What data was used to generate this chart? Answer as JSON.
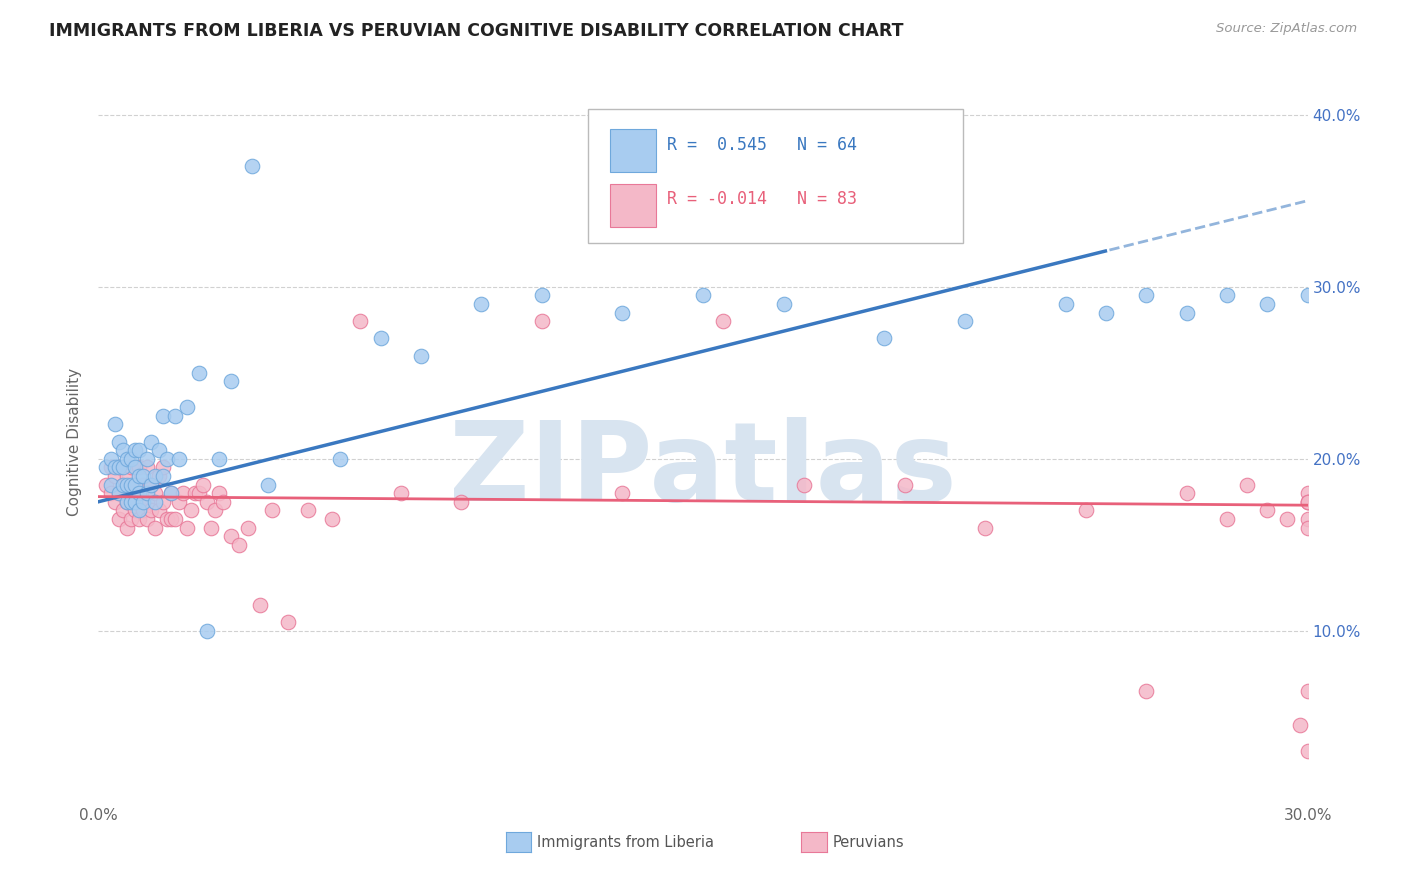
{
  "title": "IMMIGRANTS FROM LIBERIA VS PERUVIAN COGNITIVE DISABILITY CORRELATION CHART",
  "source": "Source: ZipAtlas.com",
  "ylabel": "Cognitive Disability",
  "x_min": 0.0,
  "x_max": 0.3,
  "y_min": 0.0,
  "y_max": 0.42,
  "liberia_R": 0.545,
  "liberia_N": 64,
  "peru_R": -0.014,
  "peru_N": 83,
  "liberia_color": "#A8CCF0",
  "liberia_edge_color": "#6FA8DC",
  "peru_color": "#F4B8C8",
  "peru_edge_color": "#E87898",
  "trendline_liberia_color": "#3A78C0",
  "trendline_peru_color": "#E8607A",
  "watermark_color": "#D8E4F0",
  "background_color": "#FFFFFF",
  "grid_color": "#CCCCCC",
  "liberia_x": [
    0.002,
    0.003,
    0.003,
    0.004,
    0.004,
    0.005,
    0.005,
    0.005,
    0.006,
    0.006,
    0.006,
    0.007,
    0.007,
    0.007,
    0.008,
    0.008,
    0.008,
    0.009,
    0.009,
    0.009,
    0.009,
    0.01,
    0.01,
    0.01,
    0.01,
    0.011,
    0.011,
    0.012,
    0.012,
    0.013,
    0.013,
    0.014,
    0.014,
    0.015,
    0.016,
    0.016,
    0.017,
    0.018,
    0.019,
    0.02,
    0.022,
    0.025,
    0.027,
    0.03,
    0.033,
    0.038,
    0.042,
    0.06,
    0.07,
    0.08,
    0.095,
    0.11,
    0.13,
    0.15,
    0.17,
    0.195,
    0.215,
    0.24,
    0.25,
    0.26,
    0.27,
    0.28,
    0.29,
    0.3
  ],
  "liberia_y": [
    0.195,
    0.185,
    0.2,
    0.22,
    0.195,
    0.18,
    0.195,
    0.21,
    0.185,
    0.195,
    0.205,
    0.175,
    0.185,
    0.2,
    0.175,
    0.185,
    0.2,
    0.175,
    0.185,
    0.195,
    0.205,
    0.17,
    0.18,
    0.19,
    0.205,
    0.175,
    0.19,
    0.18,
    0.2,
    0.185,
    0.21,
    0.175,
    0.19,
    0.205,
    0.19,
    0.225,
    0.2,
    0.18,
    0.225,
    0.2,
    0.23,
    0.25,
    0.1,
    0.2,
    0.245,
    0.37,
    0.185,
    0.2,
    0.27,
    0.26,
    0.29,
    0.295,
    0.285,
    0.295,
    0.29,
    0.27,
    0.28,
    0.29,
    0.285,
    0.295,
    0.285,
    0.295,
    0.29,
    0.295
  ],
  "peru_x": [
    0.002,
    0.003,
    0.003,
    0.004,
    0.004,
    0.005,
    0.005,
    0.005,
    0.006,
    0.006,
    0.007,
    0.007,
    0.007,
    0.008,
    0.008,
    0.008,
    0.009,
    0.009,
    0.01,
    0.01,
    0.01,
    0.011,
    0.011,
    0.012,
    0.012,
    0.012,
    0.013,
    0.013,
    0.014,
    0.014,
    0.015,
    0.015,
    0.016,
    0.016,
    0.017,
    0.018,
    0.018,
    0.019,
    0.02,
    0.021,
    0.022,
    0.023,
    0.024,
    0.025,
    0.026,
    0.027,
    0.028,
    0.029,
    0.03,
    0.031,
    0.033,
    0.035,
    0.037,
    0.04,
    0.043,
    0.047,
    0.052,
    0.058,
    0.065,
    0.075,
    0.09,
    0.11,
    0.13,
    0.155,
    0.175,
    0.2,
    0.22,
    0.245,
    0.26,
    0.27,
    0.28,
    0.285,
    0.29,
    0.295,
    0.298,
    0.3,
    0.3,
    0.3,
    0.3,
    0.3,
    0.3,
    0.3,
    0.3
  ],
  "peru_y": [
    0.185,
    0.18,
    0.195,
    0.175,
    0.19,
    0.165,
    0.18,
    0.195,
    0.17,
    0.185,
    0.16,
    0.175,
    0.19,
    0.165,
    0.18,
    0.195,
    0.17,
    0.185,
    0.165,
    0.18,
    0.195,
    0.17,
    0.185,
    0.165,
    0.175,
    0.195,
    0.17,
    0.185,
    0.16,
    0.18,
    0.17,
    0.19,
    0.175,
    0.195,
    0.165,
    0.165,
    0.18,
    0.165,
    0.175,
    0.18,
    0.16,
    0.17,
    0.18,
    0.18,
    0.185,
    0.175,
    0.16,
    0.17,
    0.18,
    0.175,
    0.155,
    0.15,
    0.16,
    0.115,
    0.17,
    0.105,
    0.17,
    0.165,
    0.28,
    0.18,
    0.175,
    0.28,
    0.18,
    0.28,
    0.185,
    0.185,
    0.16,
    0.17,
    0.065,
    0.18,
    0.165,
    0.185,
    0.17,
    0.165,
    0.045,
    0.03,
    0.175,
    0.18,
    0.175,
    0.175,
    0.165,
    0.16,
    0.065
  ]
}
